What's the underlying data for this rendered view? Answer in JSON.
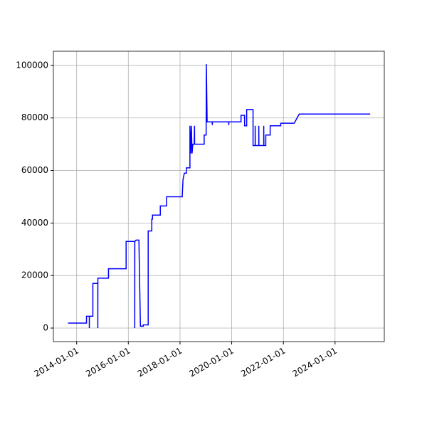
{
  "chart_data": {
    "type": "line",
    "x": [
      "2013-09-01",
      "2014-05-20",
      "2014-05-20",
      "2014-06-29",
      "2014-06-29",
      "2014-06-30",
      "2014-08-18",
      "2014-08-18",
      "2014-10-27",
      "2014-10-27",
      "2014-10-28",
      "2015-03-27",
      "2015-03-27",
      "2015-12-01",
      "2015-12-01",
      "2016-04-01",
      "2016-04-01",
      "2016-04-02",
      "2016-04-20",
      "2016-05-30",
      "2016-06-20",
      "2016-07-30",
      "2016-07-30",
      "2016-10-08",
      "2016-10-08",
      "2016-11-28",
      "2016-11-28",
      "2016-12-08",
      "2016-12-08",
      "2017-03-28",
      "2017-03-28",
      "2017-06-25",
      "2017-06-25",
      "2018-02-01",
      "2018-02-12",
      "2018-03-03",
      "2018-04-01",
      "2018-04-01",
      "2018-05-21",
      "2018-05-21",
      "2018-06-01",
      "2018-06-10",
      "2018-06-20",
      "2018-07-01",
      "2018-07-20",
      "2018-07-25",
      "2018-07-26",
      "2018-12-08",
      "2018-12-08",
      "2019-01-05",
      "2019-01-08",
      "2019-01-19",
      "2019-04-01",
      "2019-04-02",
      "2019-04-03",
      "2019-11-20",
      "2019-11-21",
      "2019-11-22",
      "2020-05-12",
      "2020-05-12",
      "2020-07-01",
      "2020-07-01",
      "2020-07-31",
      "2020-07-31",
      "2020-10-29",
      "2020-10-29",
      "2020-11-28",
      "2020-11-28",
      "2020-11-30",
      "2021-01-18",
      "2021-01-18",
      "2021-01-20",
      "2021-03-29",
      "2021-03-29",
      "2021-03-31",
      "2021-04-27",
      "2021-04-27",
      "2021-06-28",
      "2021-06-28",
      "2021-11-24",
      "2021-11-24",
      "2022-06-03",
      "2022-08-13",
      "2025-05-11"
    ],
    "series": [
      {
        "color": "#0000ff",
        "values": [
          1900,
          1900,
          4500,
          4500,
          0,
          4500,
          4500,
          17000,
          17000,
          0,
          19000,
          19000,
          22600,
          22600,
          33000,
          33000,
          0,
          33000,
          33500,
          33500,
          700,
          700,
          1200,
          1200,
          37000,
          37000,
          41500,
          41500,
          43000,
          43000,
          46500,
          46500,
          50000,
          50000,
          56500,
          59000,
          59000,
          61000,
          61000,
          77000,
          66500,
          77000,
          66500,
          70000,
          70000,
          77000,
          70000,
          70000,
          73500,
          73500,
          100500,
          78500,
          78500,
          77300,
          78500,
          78500,
          77300,
          78500,
          78500,
          81000,
          81000,
          77000,
          77000,
          83200,
          83200,
          69500,
          69500,
          77000,
          69500,
          69500,
          77000,
          69500,
          69500,
          77000,
          69500,
          69500,
          73500,
          73500,
          77000,
          77000,
          78000,
          78000,
          81500,
          81500
        ]
      }
    ],
    "xlim": [
      "2013-02-06",
      "2025-11-27"
    ],
    "xticks": [
      "2014-01-01",
      "2016-01-01",
      "2018-01-01",
      "2020-01-01",
      "2022-01-01",
      "2024-01-01"
    ],
    "ylim": [
      -5150,
      105400
    ],
    "yticks": [
      0,
      20000,
      40000,
      60000,
      80000,
      100000
    ],
    "grid": true
  }
}
